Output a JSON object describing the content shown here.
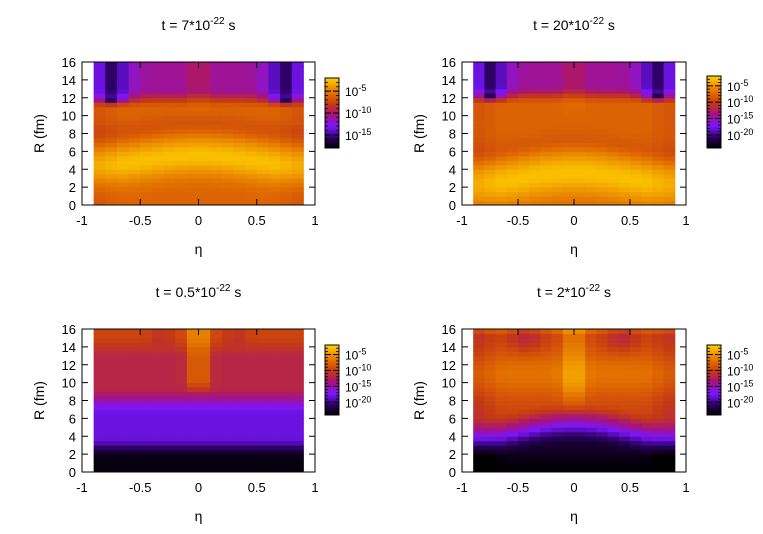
{
  "chart_data": [
    {
      "type": "heatmap",
      "title_base": "t = 7*10",
      "title_exp": "-22",
      "title_unit": " s",
      "xlabel": "η",
      "ylabel": "R (fm)",
      "xlim": [
        -1,
        1
      ],
      "ylim": [
        0,
        16
      ],
      "xticks": [
        -1,
        -0.5,
        0,
        0.5,
        1
      ],
      "xtick_labels": [
        "-1",
        "-0.5",
        "0",
        "0.5",
        "1"
      ],
      "yticks": [
        0,
        2,
        4,
        6,
        8,
        10,
        12,
        14,
        16
      ],
      "ytick_labels": [
        "0",
        "2",
        "4",
        "6",
        "8",
        "10",
        "12",
        "14",
        "16"
      ],
      "data_xrange": [
        -0.9,
        0.9
      ],
      "color_scale": "log",
      "colorbar": {
        "min_exp": -18,
        "max_exp": -2,
        "ticks": [
          {
            "base": "10",
            "exp": "-5",
            "value": -5
          },
          {
            "base": "10",
            "exp": "-10",
            "value": -10
          },
          {
            "base": "10",
            "exp": "-15",
            "value": -15
          }
        ]
      },
      "profile": "late",
      "peak_R": 5.0,
      "peak_width": 2.2,
      "bump": 0.55,
      "edge_R": 11.8
    },
    {
      "type": "heatmap",
      "title_base": "t = 20*10",
      "title_exp": "-22",
      "title_unit": " s",
      "xlabel": "η",
      "ylabel": "R (fm)",
      "xlim": [
        -1,
        1
      ],
      "ylim": [
        0,
        16
      ],
      "xticks": [
        -1,
        -0.5,
        0,
        0.5,
        1
      ],
      "xtick_labels": [
        "-1",
        "-0.5",
        "0",
        "0.5",
        "1"
      ],
      "yticks": [
        0,
        2,
        4,
        6,
        8,
        10,
        12,
        14,
        16
      ],
      "ytick_labels": [
        "0",
        "2",
        "4",
        "6",
        "8",
        "10",
        "12",
        "14",
        "16"
      ],
      "data_xrange": [
        -0.9,
        0.9
      ],
      "color_scale": "log",
      "colorbar": {
        "min_exp": -24,
        "max_exp": -2,
        "ticks": [
          {
            "base": "10",
            "exp": "-5",
            "value": -5
          },
          {
            "base": "10",
            "exp": "-10",
            "value": -10
          },
          {
            "base": "10",
            "exp": "-15",
            "value": -15
          },
          {
            "base": "10",
            "exp": "-20",
            "value": -20
          }
        ]
      },
      "profile": "late",
      "peak_R": 3.0,
      "peak_width": 2.6,
      "bump": 0.65,
      "edge_R": 12.2
    },
    {
      "type": "heatmap",
      "title_base": "t = 0.5*10",
      "title_exp": "-22",
      "title_unit": " s",
      "xlabel": "η",
      "ylabel": "R (fm)",
      "xlim": [
        -1,
        1
      ],
      "ylim": [
        0,
        16
      ],
      "xticks": [
        -1,
        -0.5,
        0,
        0.5,
        1
      ],
      "xtick_labels": [
        "-1",
        "-0.5",
        "0",
        "0.5",
        "1"
      ],
      "yticks": [
        0,
        2,
        4,
        6,
        8,
        10,
        12,
        14,
        16
      ],
      "ytick_labels": [
        "0",
        "2",
        "4",
        "6",
        "8",
        "10",
        "12",
        "14",
        "16"
      ],
      "data_xrange": [
        -0.9,
        0.9
      ],
      "color_scale": "log",
      "colorbar": {
        "min_exp": -24,
        "max_exp": -2,
        "ticks": [
          {
            "base": "10",
            "exp": "-5",
            "value": -5
          },
          {
            "base": "10",
            "exp": "-10",
            "value": -10
          },
          {
            "base": "10",
            "exp": "-15",
            "value": -15
          },
          {
            "base": "10",
            "exp": "-20",
            "value": -20
          }
        ]
      },
      "profile": "early"
    },
    {
      "type": "heatmap",
      "title_base": "t = 2*10",
      "title_exp": "-22",
      "title_unit": " s",
      "xlabel": "η",
      "ylabel": "R (fm)",
      "xlim": [
        -1,
        1
      ],
      "ylim": [
        0,
        16
      ],
      "xticks": [
        -1,
        -0.5,
        0,
        0.5,
        1
      ],
      "xtick_labels": [
        "-1",
        "-0.5",
        "0",
        "0.5",
        "1"
      ],
      "yticks": [
        0,
        2,
        4,
        6,
        8,
        10,
        12,
        14,
        16
      ],
      "ytick_labels": [
        "0",
        "2",
        "4",
        "6",
        "8",
        "10",
        "12",
        "14",
        "16"
      ],
      "data_xrange": [
        -0.9,
        0.9
      ],
      "color_scale": "log",
      "colorbar": {
        "min_exp": -24,
        "max_exp": -2,
        "ticks": [
          {
            "base": "10",
            "exp": "-5",
            "value": -5
          },
          {
            "base": "10",
            "exp": "-10",
            "value": -10
          },
          {
            "base": "10",
            "exp": "-15",
            "value": -15
          },
          {
            "base": "10",
            "exp": "-20",
            "value": -20
          }
        ]
      },
      "profile": "mid"
    }
  ]
}
